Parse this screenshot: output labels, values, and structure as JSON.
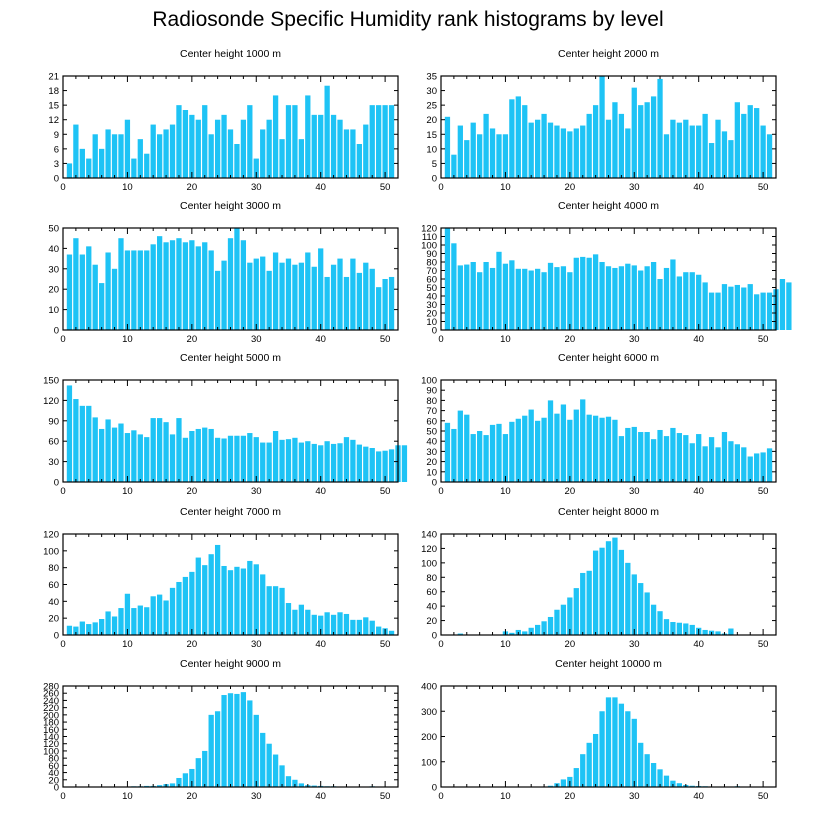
{
  "title": "Radiosonde Specific Humidity rank histograms by level",
  "bar_color": "#1EC3F5",
  "axis_color": "#000000",
  "chart_data": [
    {
      "type": "bar",
      "title": "Center height 1000 m",
      "x_ticks": [
        0,
        10,
        20,
        30,
        40,
        50
      ],
      "xlim": [
        0,
        52
      ],
      "y_ticks": [
        0,
        3,
        6,
        9,
        12,
        15,
        18,
        21
      ],
      "ylim": [
        0,
        21
      ],
      "values": [
        3,
        11,
        6,
        4,
        9,
        6,
        10,
        9,
        9,
        12,
        4,
        8,
        5,
        11,
        9,
        10,
        11,
        15,
        14,
        13,
        12,
        15,
        9,
        12,
        13,
        10,
        7,
        12,
        15,
        4,
        10,
        12,
        17,
        8,
        15,
        15,
        8,
        17,
        13,
        13,
        19,
        13,
        12,
        10,
        10,
        7,
        11,
        15,
        15,
        15,
        15
      ]
    },
    {
      "type": "bar",
      "title": "Center height 2000 m",
      "x_ticks": [
        0,
        10,
        20,
        30,
        40,
        50
      ],
      "xlim": [
        0,
        52
      ],
      "y_ticks": [
        0,
        5,
        10,
        15,
        20,
        25,
        30,
        35
      ],
      "ylim": [
        0,
        35
      ],
      "values": [
        21,
        8,
        18,
        13,
        19,
        15,
        22,
        17,
        15,
        15,
        27,
        28,
        25,
        19,
        20,
        22,
        19,
        18,
        17,
        16,
        17,
        18,
        22,
        25,
        35,
        20,
        26,
        22,
        17,
        31,
        25,
        26,
        28,
        34,
        15,
        20,
        19,
        20,
        18,
        18,
        22,
        12,
        20,
        16,
        13,
        26,
        22,
        25,
        24,
        18,
        15
      ]
    },
    {
      "type": "bar",
      "title": "Center height 3000 m",
      "x_ticks": [
        0,
        10,
        20,
        30,
        40,
        50
      ],
      "xlim": [
        0,
        52
      ],
      "y_ticks": [
        0,
        10,
        20,
        30,
        40,
        50
      ],
      "ylim": [
        0,
        50
      ],
      "values": [
        37,
        45,
        37,
        41,
        32,
        23,
        38,
        30,
        45,
        39,
        39,
        39,
        39,
        42,
        46,
        43,
        44,
        45,
        43,
        44,
        41,
        43,
        39,
        29,
        34,
        45,
        50,
        44,
        33,
        35,
        36,
        29,
        38,
        33,
        35,
        32,
        33,
        38,
        31,
        40,
        26,
        32,
        35,
        26,
        35,
        28,
        33,
        30,
        21,
        25,
        26
      ]
    },
    {
      "type": "bar",
      "title": "Center height 4000 m",
      "x_ticks": [
        0,
        10,
        20,
        30,
        40,
        50
      ],
      "xlim": [
        0,
        52
      ],
      "y_ticks": [
        0,
        10,
        20,
        30,
        40,
        50,
        60,
        70,
        80,
        90,
        100,
        110,
        120
      ],
      "ylim": [
        0,
        120
      ],
      "values": [
        120,
        102,
        76,
        77,
        80,
        68,
        80,
        73,
        92,
        78,
        82,
        72,
        72,
        70,
        72,
        68,
        79,
        74,
        75,
        68,
        85,
        86,
        85,
        89,
        80,
        75,
        73,
        75,
        78,
        76,
        70,
        75,
        80,
        60,
        73,
        83,
        63,
        68,
        68,
        65,
        56,
        44,
        44,
        54,
        51,
        53,
        50,
        54,
        42,
        44,
        44,
        48,
        60,
        56
      ]
    },
    {
      "type": "bar",
      "title": "Center height 5000 m",
      "x_ticks": [
        0,
        10,
        20,
        30,
        40,
        50
      ],
      "xlim": [
        0,
        52
      ],
      "y_ticks": [
        0,
        30,
        60,
        90,
        120,
        150
      ],
      "ylim": [
        0,
        150
      ],
      "values": [
        142,
        122,
        112,
        112,
        95,
        78,
        92,
        80,
        86,
        72,
        76,
        70,
        66,
        94,
        94,
        88,
        70,
        94,
        65,
        75,
        78,
        80,
        78,
        65,
        64,
        68,
        68,
        68,
        72,
        66,
        58,
        58,
        75,
        62,
        63,
        65,
        58,
        60,
        56,
        54,
        60,
        56,
        57,
        66,
        62,
        55,
        52,
        50,
        45,
        46,
        48,
        54,
        54
      ]
    },
    {
      "type": "bar",
      "title": "Center height 6000 m",
      "x_ticks": [
        0,
        10,
        20,
        30,
        40,
        50
      ],
      "xlim": [
        0,
        52
      ],
      "y_ticks": [
        0,
        10,
        20,
        30,
        40,
        50,
        60,
        70,
        80,
        90,
        100
      ],
      "ylim": [
        0,
        100
      ],
      "values": [
        58,
        52,
        70,
        66,
        47,
        50,
        46,
        56,
        57,
        47,
        59,
        62,
        65,
        71,
        60,
        63,
        80,
        67,
        76,
        61,
        71,
        81,
        66,
        65,
        63,
        64,
        61,
        45,
        53,
        54,
        49,
        49,
        42,
        51,
        45,
        53,
        48,
        46,
        38,
        47,
        35,
        44,
        34,
        49,
        40,
        37,
        34,
        25,
        28,
        29,
        33
      ]
    },
    {
      "type": "bar",
      "title": "Center height 7000 m",
      "x_ticks": [
        0,
        10,
        20,
        30,
        40,
        50
      ],
      "xlim": [
        0,
        52
      ],
      "y_ticks": [
        0,
        20,
        40,
        60,
        80,
        100,
        120
      ],
      "ylim": [
        0,
        120
      ],
      "values": [
        11,
        10,
        16,
        13,
        15,
        19,
        28,
        22,
        32,
        49,
        32,
        35,
        33,
        46,
        48,
        41,
        56,
        63,
        69,
        75,
        92,
        83,
        96,
        107,
        82,
        77,
        81,
        79,
        88,
        84,
        72,
        58,
        58,
        56,
        38,
        30,
        36,
        30,
        24,
        23,
        27,
        24,
        27,
        25,
        18,
        18,
        21,
        17,
        10,
        8,
        5
      ]
    },
    {
      "type": "bar",
      "title": "Center height 8000 m",
      "x_ticks": [
        0,
        10,
        20,
        30,
        40,
        50
      ],
      "xlim": [
        0,
        52
      ],
      "y_ticks": [
        0,
        20,
        40,
        60,
        80,
        100,
        120,
        140
      ],
      "ylim": [
        0,
        140
      ],
      "values": [
        0,
        0,
        2,
        0,
        0,
        0,
        0,
        0,
        0,
        5,
        3,
        7,
        5,
        10,
        14,
        19,
        25,
        35,
        42,
        52,
        65,
        86,
        89,
        117,
        121,
        130,
        135,
        118,
        100,
        84,
        72,
        59,
        42,
        33,
        22,
        18,
        17,
        16,
        14,
        10,
        7,
        6,
        5,
        2,
        9,
        0,
        0,
        0,
        0,
        0,
        0
      ]
    },
    {
      "type": "bar",
      "title": "Center height 9000 m",
      "x_ticks": [
        0,
        10,
        20,
        30,
        40,
        50
      ],
      "xlim": [
        0,
        52
      ],
      "y_ticks": [
        0,
        20,
        40,
        60,
        80,
        100,
        120,
        140,
        160,
        180,
        200,
        220,
        240,
        260,
        280
      ],
      "ylim": [
        0,
        280
      ],
      "values": [
        0,
        0,
        0,
        0,
        0,
        0,
        0,
        0,
        1,
        1,
        2,
        2,
        3,
        3,
        5,
        8,
        10,
        25,
        38,
        50,
        80,
        100,
        200,
        210,
        255,
        260,
        258,
        263,
        240,
        200,
        150,
        120,
        90,
        60,
        30,
        20,
        10,
        5,
        4,
        3,
        2,
        2,
        1,
        1,
        1,
        0,
        0,
        2,
        1,
        1,
        0
      ]
    },
    {
      "type": "bar",
      "title": "Center height 10000 m",
      "x_ticks": [
        0,
        10,
        20,
        30,
        40,
        50
      ],
      "xlim": [
        0,
        52
      ],
      "y_ticks": [
        0,
        100,
        200,
        300,
        400
      ],
      "ylim": [
        0,
        400
      ],
      "values": [
        0,
        0,
        0,
        0,
        0,
        0,
        0,
        0,
        0,
        0,
        0,
        0,
        0,
        0,
        1,
        2,
        5,
        15,
        30,
        40,
        75,
        130,
        175,
        210,
        300,
        355,
        355,
        330,
        300,
        270,
        175,
        130,
        95,
        70,
        45,
        25,
        15,
        8,
        5,
        4,
        3,
        2,
        2,
        1,
        1,
        3,
        1,
        1,
        0,
        0,
        0
      ]
    }
  ]
}
